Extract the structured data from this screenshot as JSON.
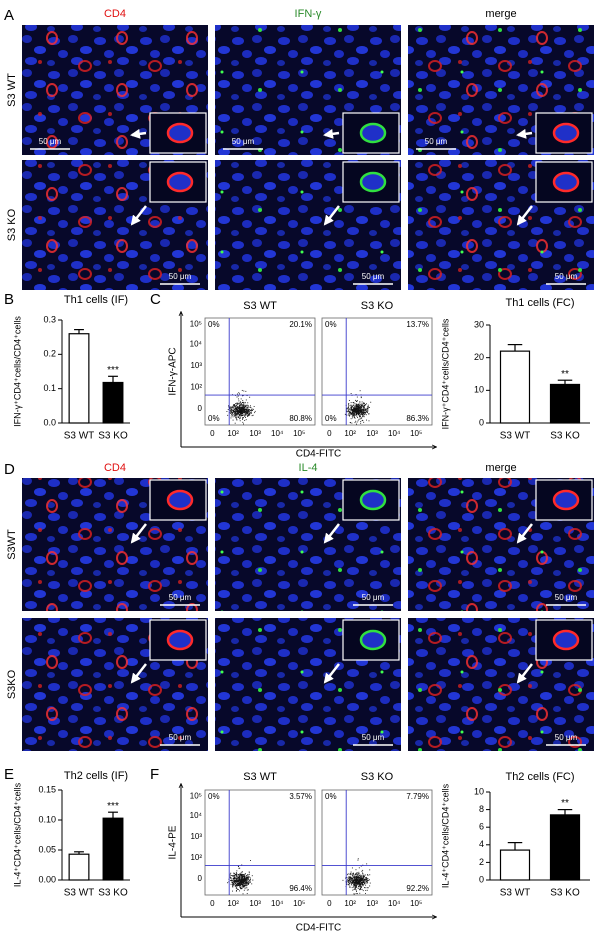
{
  "panel_labels": [
    "A",
    "B",
    "C",
    "D",
    "E",
    "F"
  ],
  "micrographs": [
    {
      "columns": [
        "CD4",
        "IFN-γ",
        "merge"
      ],
      "rows": [
        "S3 WT",
        "S3 KO"
      ],
      "scale_bar": "50 μm"
    },
    {
      "columns": [
        "CD4",
        "IL-4",
        "merge"
      ],
      "rows": [
        "S3WT",
        "S3KO"
      ],
      "scale_bar": "50 μm"
    }
  ],
  "flow_cytometry": [
    {
      "x_label": "CD4-FITC",
      "y_label": "IFN-γ-APC",
      "x_ticks": [
        "0",
        "10²",
        "10³",
        "10⁴",
        "10⁵"
      ],
      "y_ticks": [
        "10⁵",
        "10⁴",
        "10³",
        "10²",
        "0"
      ],
      "plots": [
        {
          "title": "S3 WT",
          "quadrants": {
            "upper_left": "0%",
            "upper_right": "20.1%",
            "lower_left": "0%",
            "lower_right": "80.8%"
          }
        },
        {
          "title": "S3 KO",
          "quadrants": {
            "upper_left": "0%",
            "upper_right": "13.7%",
            "lower_left": "0%",
            "lower_right": "86.3%"
          }
        }
      ]
    },
    {
      "x_label": "CD4-FITC",
      "y_label": "IL-4-PE",
      "x_ticks": [
        "0",
        "10²",
        "10³",
        "10⁴",
        "10⁵"
      ],
      "y_ticks": [
        "10⁵",
        "10⁴",
        "10³",
        "10²",
        "0"
      ],
      "plots": [
        {
          "title": "S3 WT",
          "quadrants": {
            "upper_left": "0%",
            "upper_right": "3.57%",
            "lower_right": "96.4%"
          }
        },
        {
          "title": "S3 KO",
          "quadrants": {
            "upper_left": "0%",
            "upper_right": "7.79%",
            "lower_right": "92.2%"
          }
        }
      ]
    }
  ],
  "chart_data": [
    {
      "type": "bar",
      "title": "Th1 cells (IF)",
      "y_label": "IFN-γ⁺CD4⁺cells/CD4⁺cells",
      "categories": [
        "S3 WT",
        "S3 KO"
      ],
      "values": [
        0.26,
        0.118
      ],
      "errors": [
        0.012,
        0.018
      ],
      "colors": [
        "#ffffff",
        "#000000"
      ],
      "significance": "***",
      "ylim": [
        0,
        0.3
      ],
      "yticks": [
        {
          "value": 0,
          "label": "0.0"
        },
        0.1,
        0.2,
        0.3
      ]
    },
    {
      "type": "bar",
      "title": "Th1 cells (FC)",
      "y_label": "IFN-γ⁺CD4⁺cells/CD4⁺cells",
      "categories": [
        "S3 WT",
        "S3 KO"
      ],
      "values": [
        22,
        11.8
      ],
      "errors": [
        2,
        1.3
      ],
      "colors": [
        "#ffffff",
        "#000000"
      ],
      "significance": "**",
      "ylim": [
        0,
        30
      ],
      "yticks": [
        0,
        10,
        20,
        30
      ]
    },
    {
      "type": "bar",
      "title": "Th2 cells (IF)",
      "y_label": "IL-4⁺CD4⁺cells/CD4⁺cells",
      "categories": [
        "S3 WT",
        "S3 KO"
      ],
      "values": [
        0.043,
        0.103
      ],
      "errors": [
        0.004,
        0.01
      ],
      "colors": [
        "#ffffff",
        "#000000"
      ],
      "significance": "***",
      "ylim": [
        0,
        0.15
      ],
      "yticks": [
        {
          "value": 0,
          "label": "0.00"
        },
        0.05,
        {
          "value": 0.1,
          "label": "0.10"
        },
        0.15
      ]
    },
    {
      "type": "bar",
      "title": "Th2 cells (FC)",
      "y_label": "IL-4⁺CD4⁺cells/CD4⁺cells",
      "categories": [
        "S3 WT",
        "S3 KO"
      ],
      "values": [
        3.4,
        7.4
      ],
      "errors": [
        0.85,
        0.6
      ],
      "colors": [
        "#ffffff",
        "#000000"
      ],
      "significance": "**",
      "ylim": [
        0,
        10
      ],
      "yticks": [
        0,
        2,
        4,
        6,
        8,
        10
      ]
    }
  ]
}
